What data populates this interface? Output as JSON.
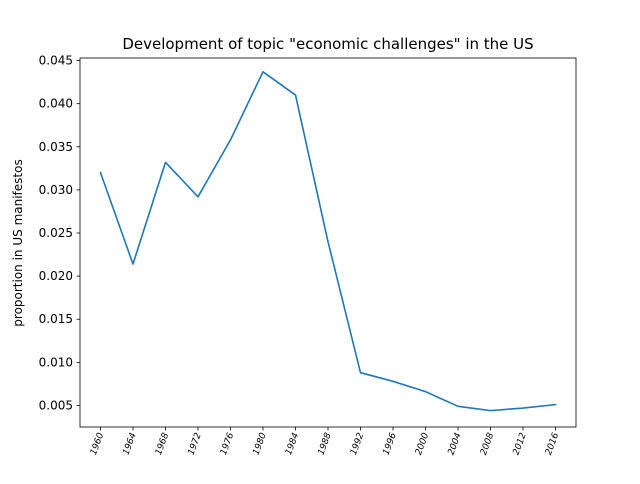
{
  "chart_data": {
    "type": "line",
    "title": "Development of topic \"economic challenges\" in the US",
    "xlabel": "",
    "ylabel": "proportion in US manifestos",
    "x": [
      1960,
      1964,
      1968,
      1972,
      1976,
      1980,
      1984,
      1988,
      1992,
      1996,
      2000,
      2004,
      2008,
      2012,
      2016
    ],
    "xtick_labels": [
      "1960",
      "1964",
      "1968",
      "1972",
      "1976",
      "1980",
      "1984",
      "1988",
      "1992",
      "1996",
      "2000",
      "2004",
      "2008",
      "2012",
      "2016"
    ],
    "y": [
      0.032,
      0.0214,
      0.0332,
      0.0292,
      0.0358,
      0.0437,
      0.041,
      0.024,
      0.0088,
      0.0078,
      0.0066,
      0.0049,
      0.0044,
      0.0047,
      0.0051
    ],
    "ylim": [
      0.0025,
      0.0453
    ],
    "yticks": [
      0.005,
      0.01,
      0.015,
      0.02,
      0.025,
      0.03,
      0.035,
      0.04,
      0.045
    ],
    "ytick_labels": [
      "0.005",
      "0.010",
      "0.015",
      "0.020",
      "0.025",
      "0.030",
      "0.035",
      "0.040",
      "0.045"
    ],
    "grid": false,
    "series_color": "#1f77b4"
  }
}
